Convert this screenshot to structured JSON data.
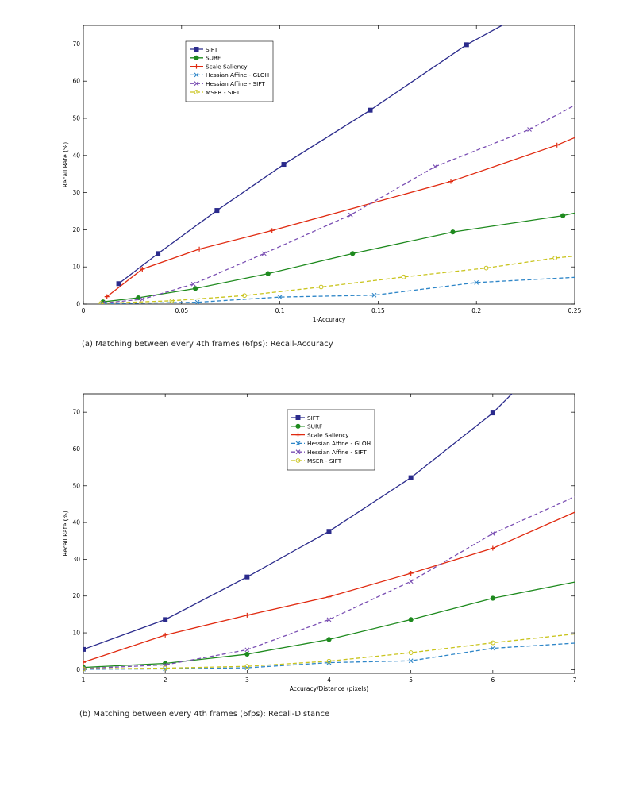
{
  "chart_data": [
    {
      "type": "line",
      "title": "",
      "xlabel": "1-Accuracy",
      "ylabel": "Recall Rate (%)",
      "xlim": [
        0,
        0.25
      ],
      "ylim": [
        0,
        75
      ],
      "xticks": [
        0,
        0.05,
        0.1,
        0.15,
        0.2,
        0.25
      ],
      "xtick_labels": [
        "0",
        "0.05",
        "0.1",
        "0.15",
        "0.2",
        "0.25"
      ],
      "yticks": [
        0,
        10,
        20,
        30,
        40,
        50,
        60,
        70
      ],
      "ytick_labels": [
        "0",
        "10",
        "20",
        "30",
        "40",
        "50",
        "60",
        "70"
      ],
      "grid": false,
      "legend": "top-left",
      "caption": "(a) Matching between every 4th frames (6fps): Recall-Accuracy",
      "series": [
        {
          "name": "SIFT",
          "color": "#2b2b8c",
          "dash": "solid",
          "marker": "square",
          "x": [
            0.018,
            0.038,
            0.068,
            0.102,
            0.146,
            0.195,
            0.22
          ],
          "y": [
            5.5,
            13.6,
            25.2,
            37.6,
            52.2,
            69.8,
            77
          ]
        },
        {
          "name": "SURF",
          "color": "#1e8a1e",
          "dash": "solid",
          "marker": "circle",
          "x": [
            0.01,
            0.028,
            0.057,
            0.094,
            0.137,
            0.188,
            0.244,
            0.25
          ],
          "y": [
            0.6,
            1.7,
            4.2,
            8.2,
            13.6,
            19.4,
            23.8,
            24.5
          ]
        },
        {
          "name": "Scale Saliency",
          "color": "#e02a10",
          "dash": "solid",
          "marker": "plus",
          "x": [
            0.012,
            0.03,
            0.059,
            0.096,
            0.187,
            0.241,
            0.25
          ],
          "y": [
            2.0,
            9.4,
            14.8,
            19.8,
            33.0,
            42.8,
            44.8
          ]
        },
        {
          "name": "Hessian Affine - GLOH",
          "color": "#2e86c8",
          "dash": "dashed",
          "marker": "x",
          "x": [
            0.01,
            0.058,
            0.1,
            0.148,
            0.2,
            0.25
          ],
          "y": [
            0.1,
            0.5,
            1.9,
            2.4,
            5.8,
            7.2
          ]
        },
        {
          "name": "Hessian Affine - SIFT",
          "color": "#7a4fb3",
          "dash": "dashed",
          "marker": "x",
          "x": [
            0.01,
            0.03,
            0.056,
            0.092,
            0.136,
            0.179,
            0.227,
            0.25
          ],
          "y": [
            0.3,
            1.3,
            5.4,
            13.6,
            24.0,
            37.0,
            47.0,
            53.5
          ]
        },
        {
          "name": "MSER - SIFT",
          "color": "#c9c41e",
          "dash": "dashed",
          "marker": "circle-open",
          "x": [
            0.009,
            0.045,
            0.082,
            0.121,
            0.163,
            0.205,
            0.24,
            0.25
          ],
          "y": [
            0.2,
            0.9,
            2.3,
            4.6,
            7.3,
            9.7,
            12.4,
            12.9
          ]
        }
      ]
    },
    {
      "type": "line",
      "title": "",
      "xlabel": "Accuracy/Distance (pixels)",
      "ylabel": "Recall Rate (%)",
      "xlim": [
        1,
        7
      ],
      "ylim": [
        -1,
        75
      ],
      "xticks": [
        1,
        2,
        3,
        4,
        5,
        6,
        7
      ],
      "xtick_labels": [
        "1",
        "2",
        "3",
        "4",
        "5",
        "6",
        "7"
      ],
      "yticks": [
        0,
        10,
        20,
        30,
        40,
        50,
        60,
        70
      ],
      "ytick_labels": [
        "0",
        "10",
        "20",
        "30",
        "40",
        "50",
        "60",
        "70"
      ],
      "grid": false,
      "legend": "top-center",
      "caption": "(b) Matching between every 4th frames (6fps): Recall-Distance",
      "series": [
        {
          "name": "SIFT",
          "color": "#2b2b8c",
          "dash": "solid",
          "marker": "square",
          "x": [
            1,
            2,
            3,
            4,
            5,
            6,
            6.3
          ],
          "y": [
            5.5,
            13.6,
            25.2,
            37.6,
            52.2,
            69.8,
            76.5
          ]
        },
        {
          "name": "SURF",
          "color": "#1e8a1e",
          "dash": "solid",
          "marker": "circle",
          "x": [
            1,
            2,
            3,
            4,
            5,
            6,
            7
          ],
          "y": [
            0.6,
            1.7,
            4.2,
            8.2,
            13.6,
            19.4,
            23.8
          ]
        },
        {
          "name": "Scale Saliency",
          "color": "#e02a10",
          "dash": "solid",
          "marker": "plus",
          "x": [
            1,
            2,
            3,
            4,
            5,
            6,
            7
          ],
          "y": [
            2.0,
            9.4,
            14.8,
            19.8,
            26.2,
            33.0,
            42.8
          ]
        },
        {
          "name": "Hessian Affine - GLOH",
          "color": "#2e86c8",
          "dash": "dashed",
          "marker": "x",
          "x": [
            1,
            2,
            3,
            4,
            5,
            6,
            7
          ],
          "y": [
            0.1,
            0.2,
            0.5,
            1.9,
            2.4,
            5.8,
            7.2
          ]
        },
        {
          "name": "Hessian Affine - SIFT",
          "color": "#7a4fb3",
          "dash": "dashed",
          "marker": "x",
          "x": [
            1,
            2,
            3,
            4,
            5,
            6,
            7
          ],
          "y": [
            0.3,
            1.3,
            5.4,
            13.6,
            24.0,
            37.0,
            47.0
          ]
        },
        {
          "name": "MSER - SIFT",
          "color": "#c9c41e",
          "dash": "dashed",
          "marker": "circle-open",
          "x": [
            1,
            2,
            3,
            4,
            5,
            6,
            7
          ],
          "y": [
            0.2,
            0.4,
            0.9,
            2.3,
            4.6,
            7.3,
            9.7
          ]
        }
      ]
    }
  ]
}
